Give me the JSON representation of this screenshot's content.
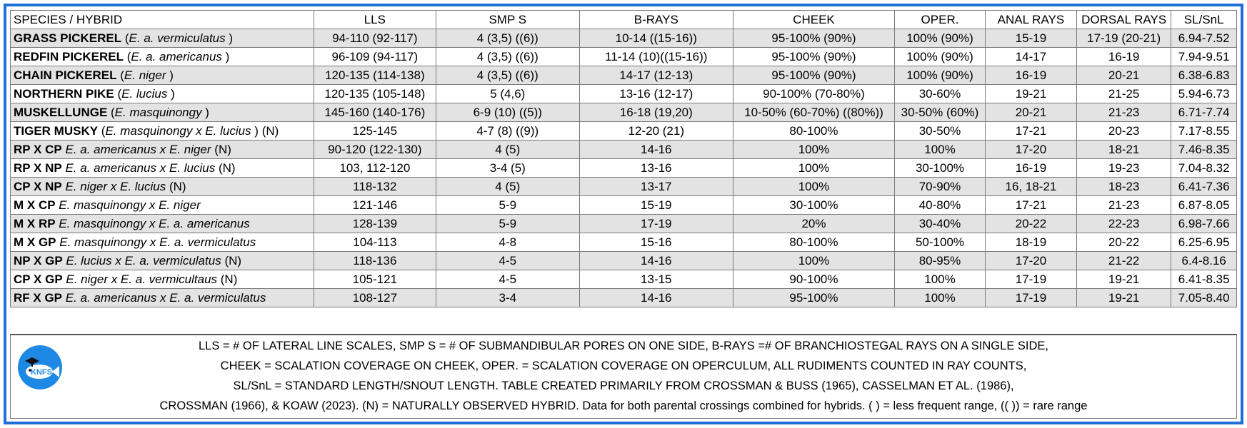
{
  "columns": [
    "SPECIES / HYBRID",
    "LLS",
    "SMP S",
    "B-RAYS",
    "CHEEK",
    "OPER.",
    "ANAL RAYS",
    "DORSAL RAYS",
    "SL/SnL"
  ],
  "rows": [
    {
      "code": "GRASS PICKEREL",
      "sci": "E. a. vermiculatus",
      "parens": true,
      "note": "",
      "lls": "94-110 (92-117)",
      "smp": "4 (3,5) ((6))",
      "brays": "10-14 ((15-16))",
      "cheek": "95-100% (90%)",
      "oper": "100% (90%)",
      "anal": "15-19",
      "dorsal": "17-19 (20-21)",
      "sl": "6.94-7.52"
    },
    {
      "code": "REDFIN PICKEREL",
      "sci": "E. a. americanus",
      "parens": true,
      "note": "",
      "lls": "96-109 (94-117)",
      "smp": "4 (3,5) ((6))",
      "brays": "11-14 (10)((15-16))",
      "cheek": "95-100% (90%)",
      "oper": "100% (90%)",
      "anal": "14-17",
      "dorsal": "16-19",
      "sl": "7.94-9.51"
    },
    {
      "code": "CHAIN PICKEREL",
      "sci": "E. niger",
      "parens": true,
      "note": "",
      "lls": "120-135 (114-138)",
      "smp": "4 (3,5) ((6))",
      "brays": "14-17 (12-13)",
      "cheek": "95-100% (90%)",
      "oper": "100% (90%)",
      "anal": "16-19",
      "dorsal": "20-21",
      "sl": "6.38-6.83"
    },
    {
      "code": "NORTHERN PIKE",
      "sci": "E. lucius",
      "parens": true,
      "note": "",
      "lls": "120-135 (105-148)",
      "smp": "5 (4,6)",
      "brays": "13-16 (12-17)",
      "cheek": "90-100% (70-80%)",
      "oper": "30-60%",
      "anal": "19-21",
      "dorsal": "21-25",
      "sl": "5.94-6.73"
    },
    {
      "code": "MUSKELLUNGE",
      "sci": "E. masquinongy",
      "parens": true,
      "note": "",
      "lls": "145-160 (140-176)",
      "smp": "6-9 (10) ((5))",
      "brays": "16-18 (19,20)",
      "cheek": "10-50% (60-70%) ((80%))",
      "oper": "30-50% (60%)",
      "anal": "20-21",
      "dorsal": "21-23",
      "sl": "6.71-7.74"
    },
    {
      "code": "TIGER MUSKY",
      "sci": "E. masquinongy x E. lucius",
      "parens": true,
      "note": "(N)",
      "lls": "125-145",
      "smp": "4-7 (8) ((9))",
      "brays": "12-20 (21)",
      "cheek": "80-100%",
      "oper": "30-50%",
      "anal": "17-21",
      "dorsal": "20-23",
      "sl": "7.17-8.55"
    },
    {
      "code": "RP X CP",
      "sci": "E. a. americanus x E. niger",
      "parens": false,
      "note": "(N)",
      "lls": "90-120 (122-130)",
      "smp": "4 (5)",
      "brays": "14-16",
      "cheek": "100%",
      "oper": "100%",
      "anal": "17-20",
      "dorsal": "18-21",
      "sl": "7.46-8.35"
    },
    {
      "code": "RP X NP",
      "sci": "E. a. americanus x E. lucius",
      "parens": false,
      "note": "(N)",
      "lls": "103, 112-120",
      "smp": "3-4 (5)",
      "brays": "13-16",
      "cheek": "100%",
      "oper": "30-100%",
      "anal": "16-19",
      "dorsal": "19-23",
      "sl": "7.04-8.32"
    },
    {
      "code": "CP X NP",
      "sci": "E. niger x E. lucius",
      "parens": false,
      "note": "(N)",
      "lls": "118-132",
      "smp": "4 (5)",
      "brays": "13-17",
      "cheek": "100%",
      "oper": "70-90%",
      "anal": "16, 18-21",
      "dorsal": "18-23",
      "sl": "6.41-7.36"
    },
    {
      "code": "M X CP",
      "sci": "E. masquinongy x E. niger",
      "parens": false,
      "note": "",
      "lls": "121-146",
      "smp": "5-9",
      "brays": "15-19",
      "cheek": "30-100%",
      "oper": "40-80%",
      "anal": "17-21",
      "dorsal": "21-23",
      "sl": "6.87-8.05"
    },
    {
      "code": "M X RP",
      "sci": "E. masquinongy x E. a. americanus",
      "parens": false,
      "note": "",
      "lls": "128-139",
      "smp": "5-9",
      "brays": "17-19",
      "cheek": "20%",
      "oper": "30-40%",
      "anal": "20-22",
      "dorsal": "22-23",
      "sl": "6.98-7.66"
    },
    {
      "code": "M X GP",
      "sci": "E. masquinongy x E. a. vermiculatus",
      "parens": false,
      "note": "",
      "lls": "104-113",
      "smp": "4-8",
      "brays": "15-16",
      "cheek": "80-100%",
      "oper": "50-100%",
      "anal": "18-19",
      "dorsal": "20-22",
      "sl": "6.25-6.95"
    },
    {
      "code": "NP X GP",
      "sci": "E. lucius x E. a. vermiculatus",
      "parens": false,
      "note": "(N)",
      "lls": "118-136",
      "smp": "4-5",
      "brays": "14-16",
      "cheek": "100%",
      "oper": "80-95%",
      "anal": "17-20",
      "dorsal": "21-22",
      "sl": "6.4-8.16"
    },
    {
      "code": "CP X GP",
      "sci": "E. niger x E. a. vermicultaus",
      "parens": false,
      "note": "(N)",
      "lls": "105-121",
      "smp": "4-5",
      "brays": "13-15",
      "cheek": "90-100%",
      "oper": "100%",
      "anal": "17-19",
      "dorsal": "19-21",
      "sl": "6.41-8.35"
    },
    {
      "code": "RF X GP",
      "sci": "E. a. americanus x E. a. vermiculatus",
      "parens": false,
      "note": "",
      "lls": "108-127",
      "smp": "3-4",
      "brays": "14-16",
      "cheek": "95-100%",
      "oper": "100%",
      "anal": "17-19",
      "dorsal": "19-21",
      "sl": "7.05-8.40"
    }
  ],
  "footer": {
    "line1": "LLS = # OF LATERAL LINE SCALES, SMP S = # OF SUBMANDIBULAR PORES ON ONE SIDE, B-RAYS =# OF  BRANCHIOSTEGAL RAYS ON A SINGLE SIDE,",
    "line2": "CHEEK = SCALATION COVERAGE ON CHEEK, OPER. = SCALATION COVERAGE ON OPERCULUM, ALL RUDIMENTS COUNTED IN RAY COUNTS,",
    "line3": "SL/SnL = STANDARD LENGTH/SNOUT LENGTH. TABLE CREATED PRIMARILY FROM CROSSMAN & BUSS (1965), CASSELMAN ET AL. (1986),",
    "line4": "CROSSMAN (1966), & KOAW (2023). (N) = NATURALLY OBSERVED HYBRID. Data for both parental crossings combined for hybrids. ( ) = less frequent range, (( )) = rare range"
  },
  "logo": {
    "text": "KNFS",
    "icon": "fish-graduation-cap-icon",
    "color": "#1e88e5"
  },
  "colors": {
    "border": "#1f6fd6",
    "alt_row": "#e3e3e3"
  }
}
